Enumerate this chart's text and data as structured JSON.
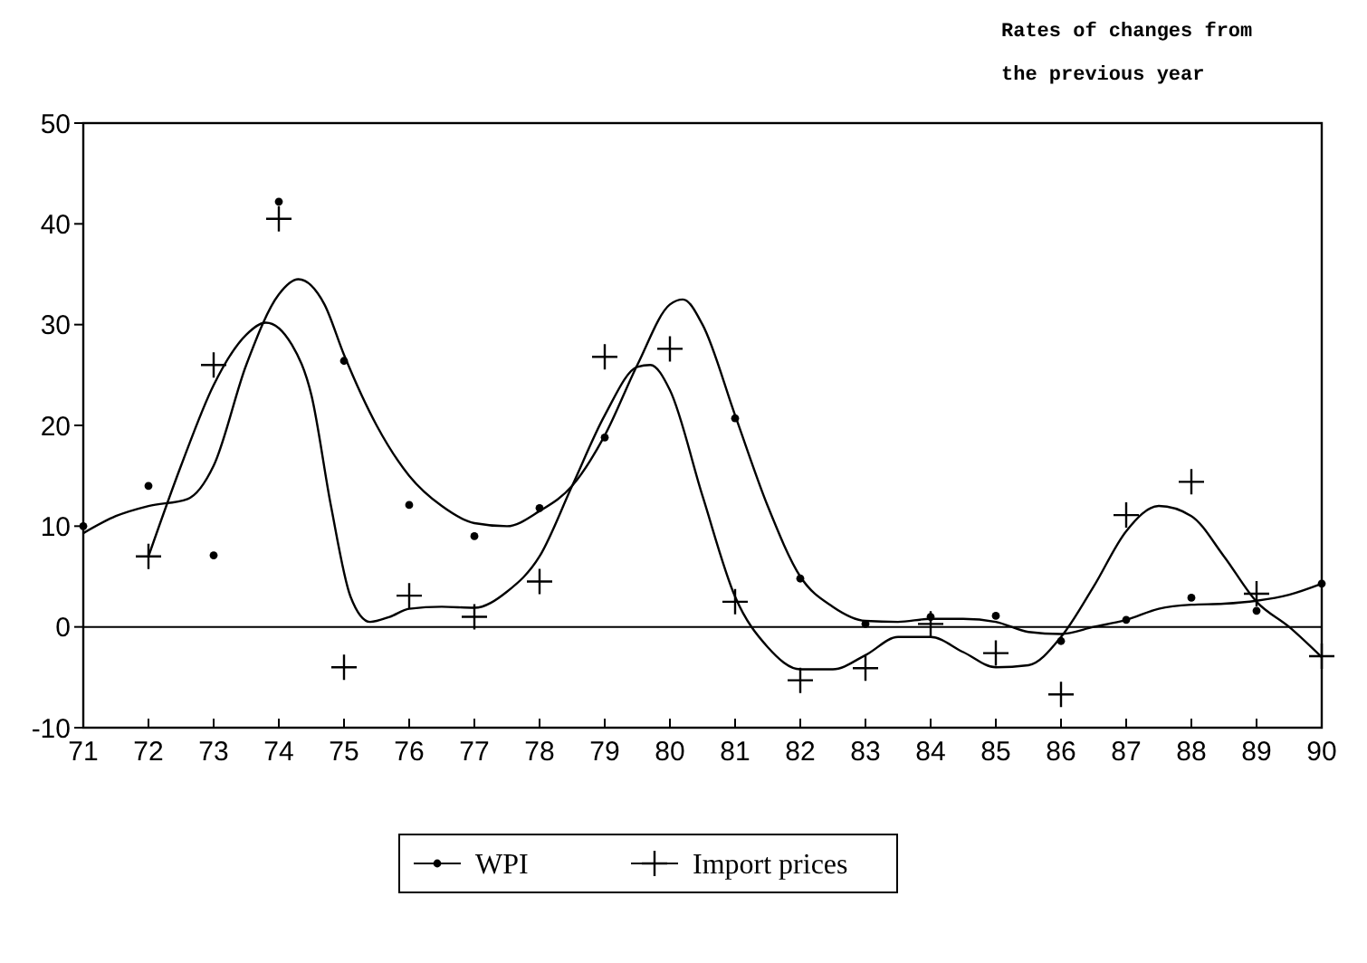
{
  "chart_data": {
    "type": "scatter",
    "annotations": [
      "Rates of changes from the previous year"
    ],
    "x": [
      71,
      72,
      73,
      74,
      75,
      76,
      77,
      78,
      79,
      80,
      81,
      82,
      83,
      84,
      85,
      86,
      87,
      88,
      89,
      90
    ],
    "xlim": [
      71,
      90
    ],
    "xticks": [
      71,
      72,
      73,
      74,
      75,
      76,
      77,
      78,
      79,
      80,
      81,
      82,
      83,
      84,
      85,
      86,
      87,
      88,
      89,
      90
    ],
    "ylim": [
      -10,
      50
    ],
    "yticks": [
      -10,
      0,
      10,
      20,
      30,
      40,
      50
    ],
    "grid": false,
    "legend": "bottom",
    "ref_lines": [
      {
        "axis": "y",
        "value": 0,
        "color": "#000000"
      }
    ],
    "series": [
      {
        "name": "WPI",
        "marker": "circle",
        "color": "#000000",
        "values": [
          10,
          14,
          7.1,
          42.2,
          26.4,
          12.1,
          9,
          11.8,
          18.8,
          null,
          20.7,
          4.8,
          0.3,
          1,
          1.1,
          -1.4,
          0.7,
          2.9,
          1.6,
          4.3
        ]
      },
      {
        "name": "Import prices",
        "marker": "cross",
        "color": "#000000",
        "values": [
          null,
          7,
          26,
          40.5,
          -4,
          3.1,
          1,
          4.5,
          26.8,
          27.6,
          2.5,
          -5.3,
          -4.1,
          0.3,
          -2.6,
          -6.7,
          11.1,
          14.4,
          3.3,
          -2.9
        ]
      },
      {
        "type": "line",
        "color": "#000000",
        "x": [
          71,
          71.5,
          72,
          72.6,
          73,
          73.5,
          74,
          74.3,
          74.7,
          75,
          75.5,
          76,
          76.5,
          77,
          77.5,
          78,
          78.5,
          79,
          79.5,
          80,
          80.2,
          80.5,
          81,
          81.5,
          82,
          82.5,
          83,
          83.5,
          84,
          84.5,
          85,
          85.5,
          86,
          86.5,
          87,
          87.5,
          88,
          88.5,
          89,
          89.5,
          90
        ],
        "values": [
          9.3,
          11,
          12,
          12.7,
          16,
          26,
          33,
          34.5,
          32,
          27,
          20,
          15,
          12,
          10.3,
          10,
          11.5,
          14,
          19,
          26,
          32,
          32.5,
          30,
          21,
          12,
          5,
          2,
          0.6,
          0.5,
          0.8,
          0.8,
          0.5,
          -0.5,
          -0.7,
          0,
          0.7,
          1.8,
          2.2,
          2.3,
          2.6,
          3.2,
          4.3
        ]
      },
      {
        "type": "line",
        "color": "#000000",
        "x": [
          72,
          72.5,
          73,
          73.5,
          73.8,
          74.2,
          74.5,
          74.8,
          75.1,
          75.4,
          75.7,
          76,
          76.5,
          77,
          77.5,
          78,
          78.5,
          79,
          79.5,
          79.7,
          80,
          80.5,
          81,
          81.5,
          82,
          82.5,
          83,
          83.5,
          84,
          84.5,
          85,
          85.5,
          86,
          86.5,
          87,
          87.5,
          88,
          88.5,
          89,
          89.5,
          90
        ],
        "values": [
          7,
          16,
          24,
          29,
          30.2,
          28,
          23,
          12,
          3,
          0.5,
          1,
          1.8,
          2,
          1.9,
          3.5,
          7,
          14,
          21,
          25.8,
          26,
          23.5,
          13,
          3,
          -2,
          -4.2,
          -4.2,
          -2.8,
          -1,
          -1,
          -2.5,
          -4,
          -3.8,
          -1,
          4,
          9.5,
          12,
          11,
          7,
          2.5,
          0,
          -3
        ]
      }
    ]
  }
}
